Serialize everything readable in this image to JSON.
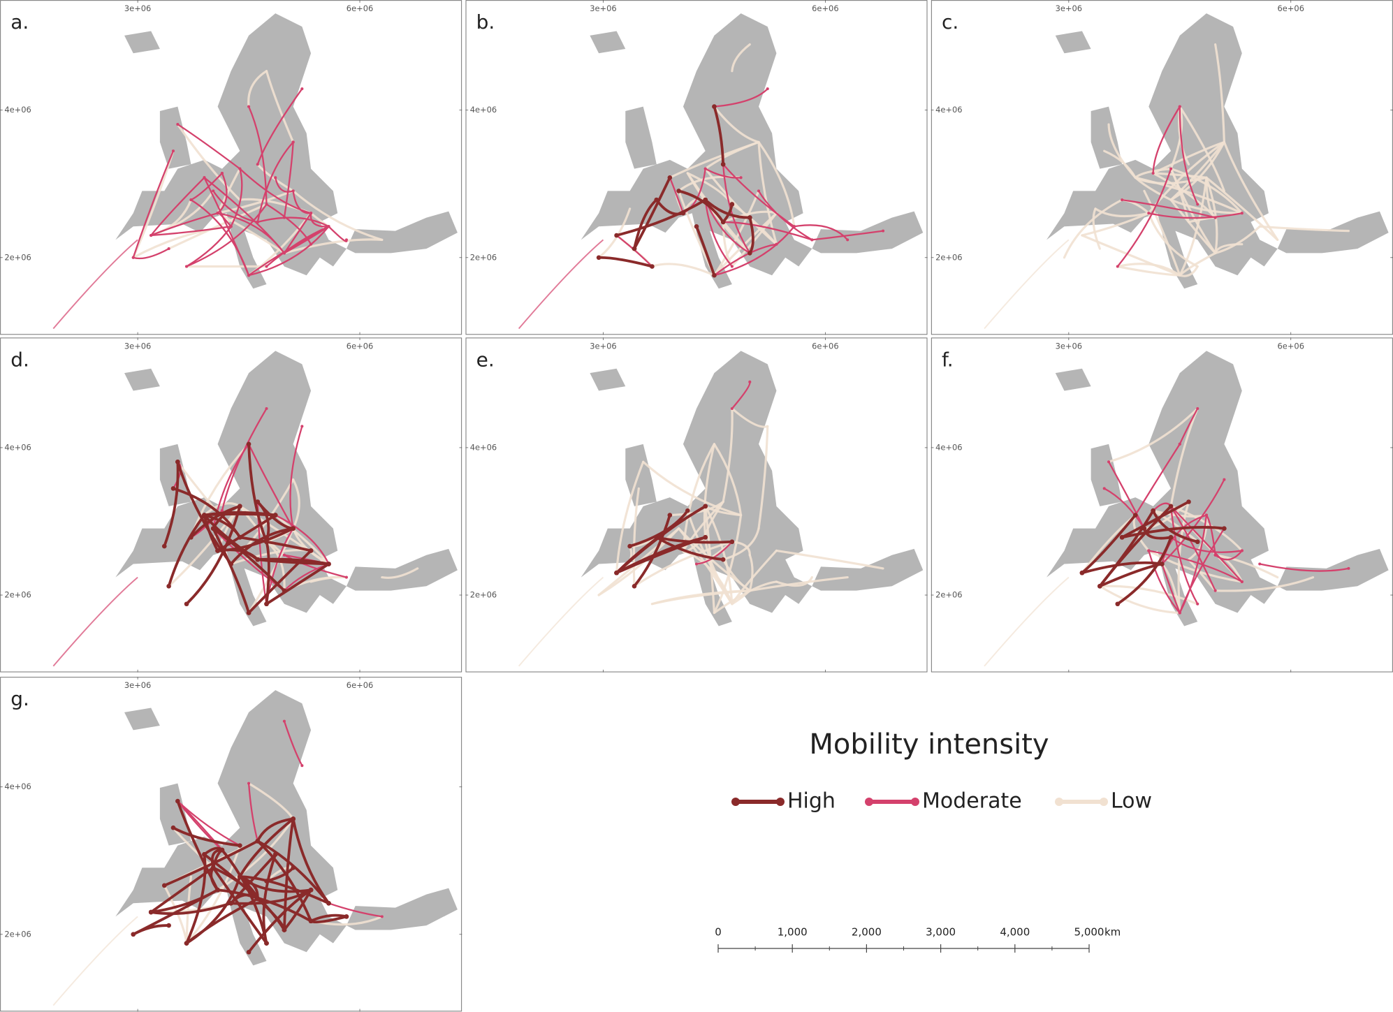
{
  "panels": [
    {
      "label": "a."
    },
    {
      "label": "b."
    },
    {
      "label": "c."
    },
    {
      "label": "d."
    },
    {
      "label": "e."
    },
    {
      "label": "f."
    },
    {
      "label": "g."
    }
  ],
  "axes": {
    "x_ticks": [
      {
        "value": 3000000,
        "label": "3e+06"
      },
      {
        "value": 6000000,
        "label": "6e+06"
      }
    ],
    "y_ticks": [
      {
        "value": 4000000,
        "label": "4e+06"
      },
      {
        "value": 2000000,
        "label": "2e+06"
      }
    ]
  },
  "legend": {
    "title": "Mobility intensity",
    "items": [
      {
        "name": "High",
        "color": "#8a2a2a"
      },
      {
        "name": "Moderate",
        "color": "#d4416c"
      },
      {
        "name": "Low",
        "color": "#f1e1d1"
      }
    ]
  },
  "scale_bar": {
    "ticks": [
      {
        "value": 0,
        "label": "0"
      },
      {
        "value": 1000,
        "label": "1,000"
      },
      {
        "value": 2000,
        "label": "2,000"
      },
      {
        "value": 3000,
        "label": "3,000"
      },
      {
        "value": 4000,
        "label": "4,000"
      },
      {
        "value": 5000,
        "label": "5,000"
      }
    ],
    "unit": "km"
  }
}
